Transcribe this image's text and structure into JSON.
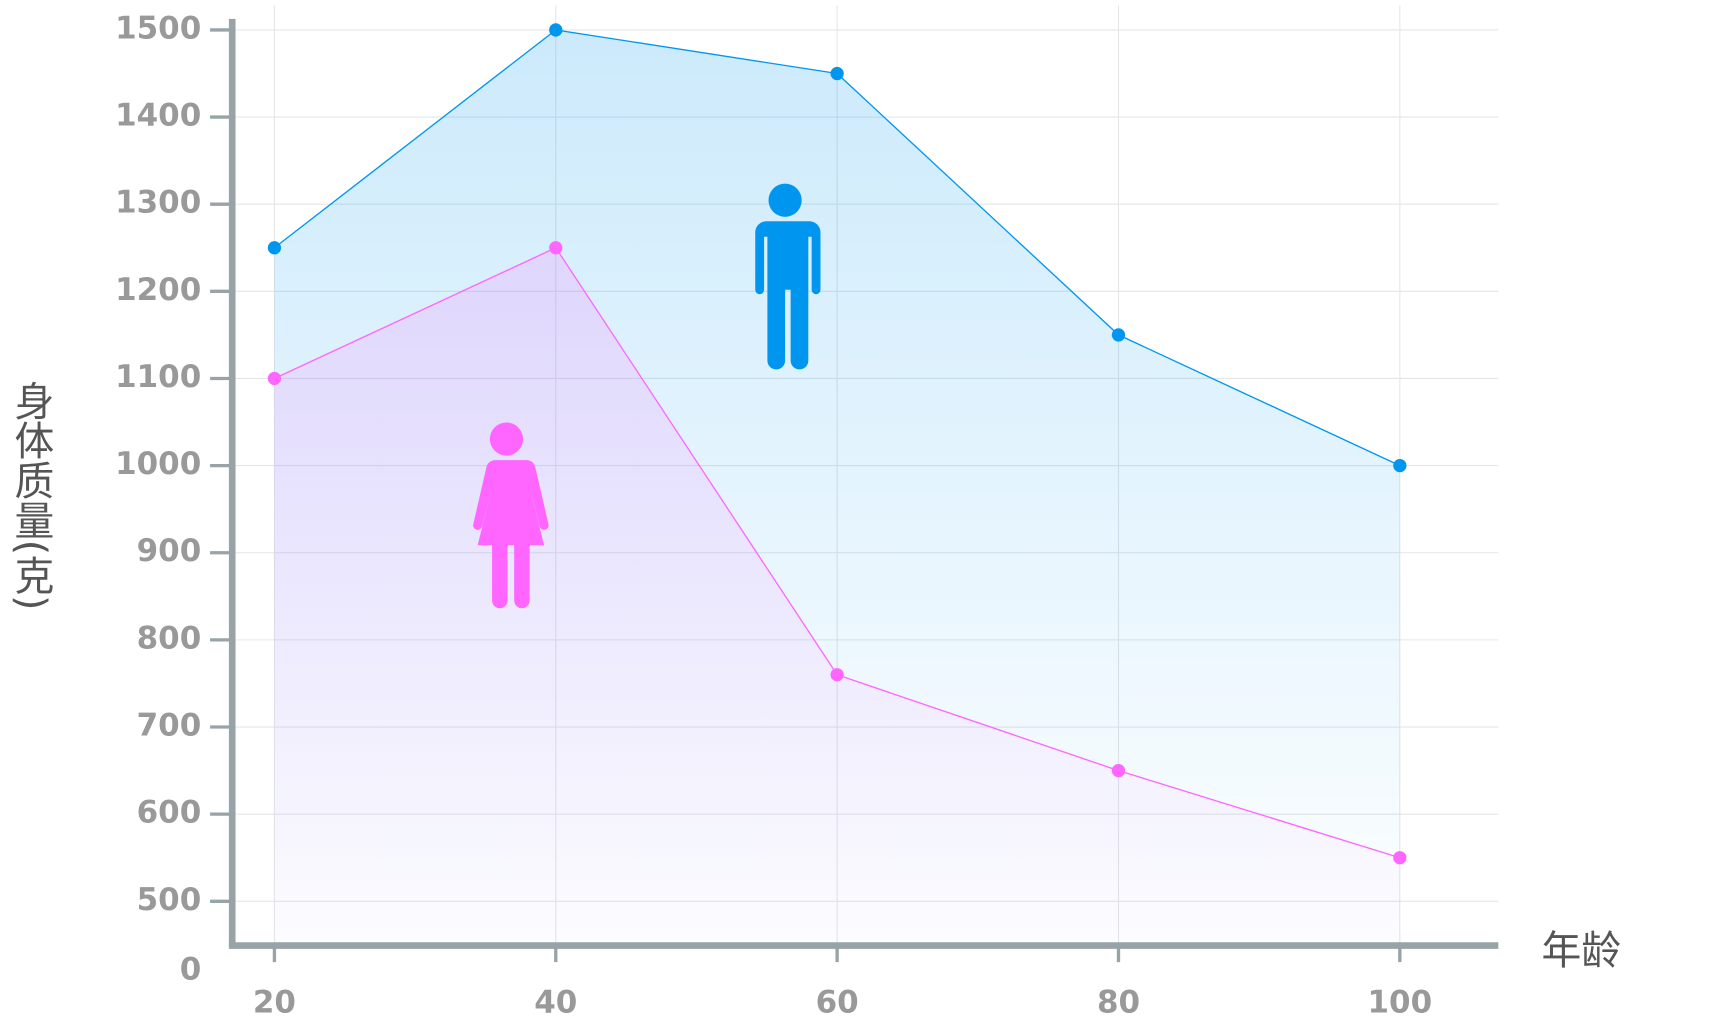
{
  "chart_data": {
    "type": "area",
    "y_label": "身体质量(克)",
    "x_label": "年龄",
    "x": [
      20,
      40,
      60,
      80,
      100
    ],
    "series": [
      {
        "color": "#0096f0",
        "values": [
          1250,
          1500,
          1450,
          1150,
          1000
        ]
      },
      {
        "color": "#ff66ff",
        "values": [
          1100,
          1250,
          760,
          650,
          550
        ]
      }
    ],
    "xlim": [
      17,
      107
    ],
    "xticks": [
      20,
      40,
      60,
      80,
      100
    ],
    "ylim": [
      0,
      1500
    ],
    "yticks": [
      0,
      500,
      600,
      700,
      800,
      900,
      1000,
      1100,
      1200,
      1300,
      1400,
      1500
    ],
    "grid": true
  }
}
